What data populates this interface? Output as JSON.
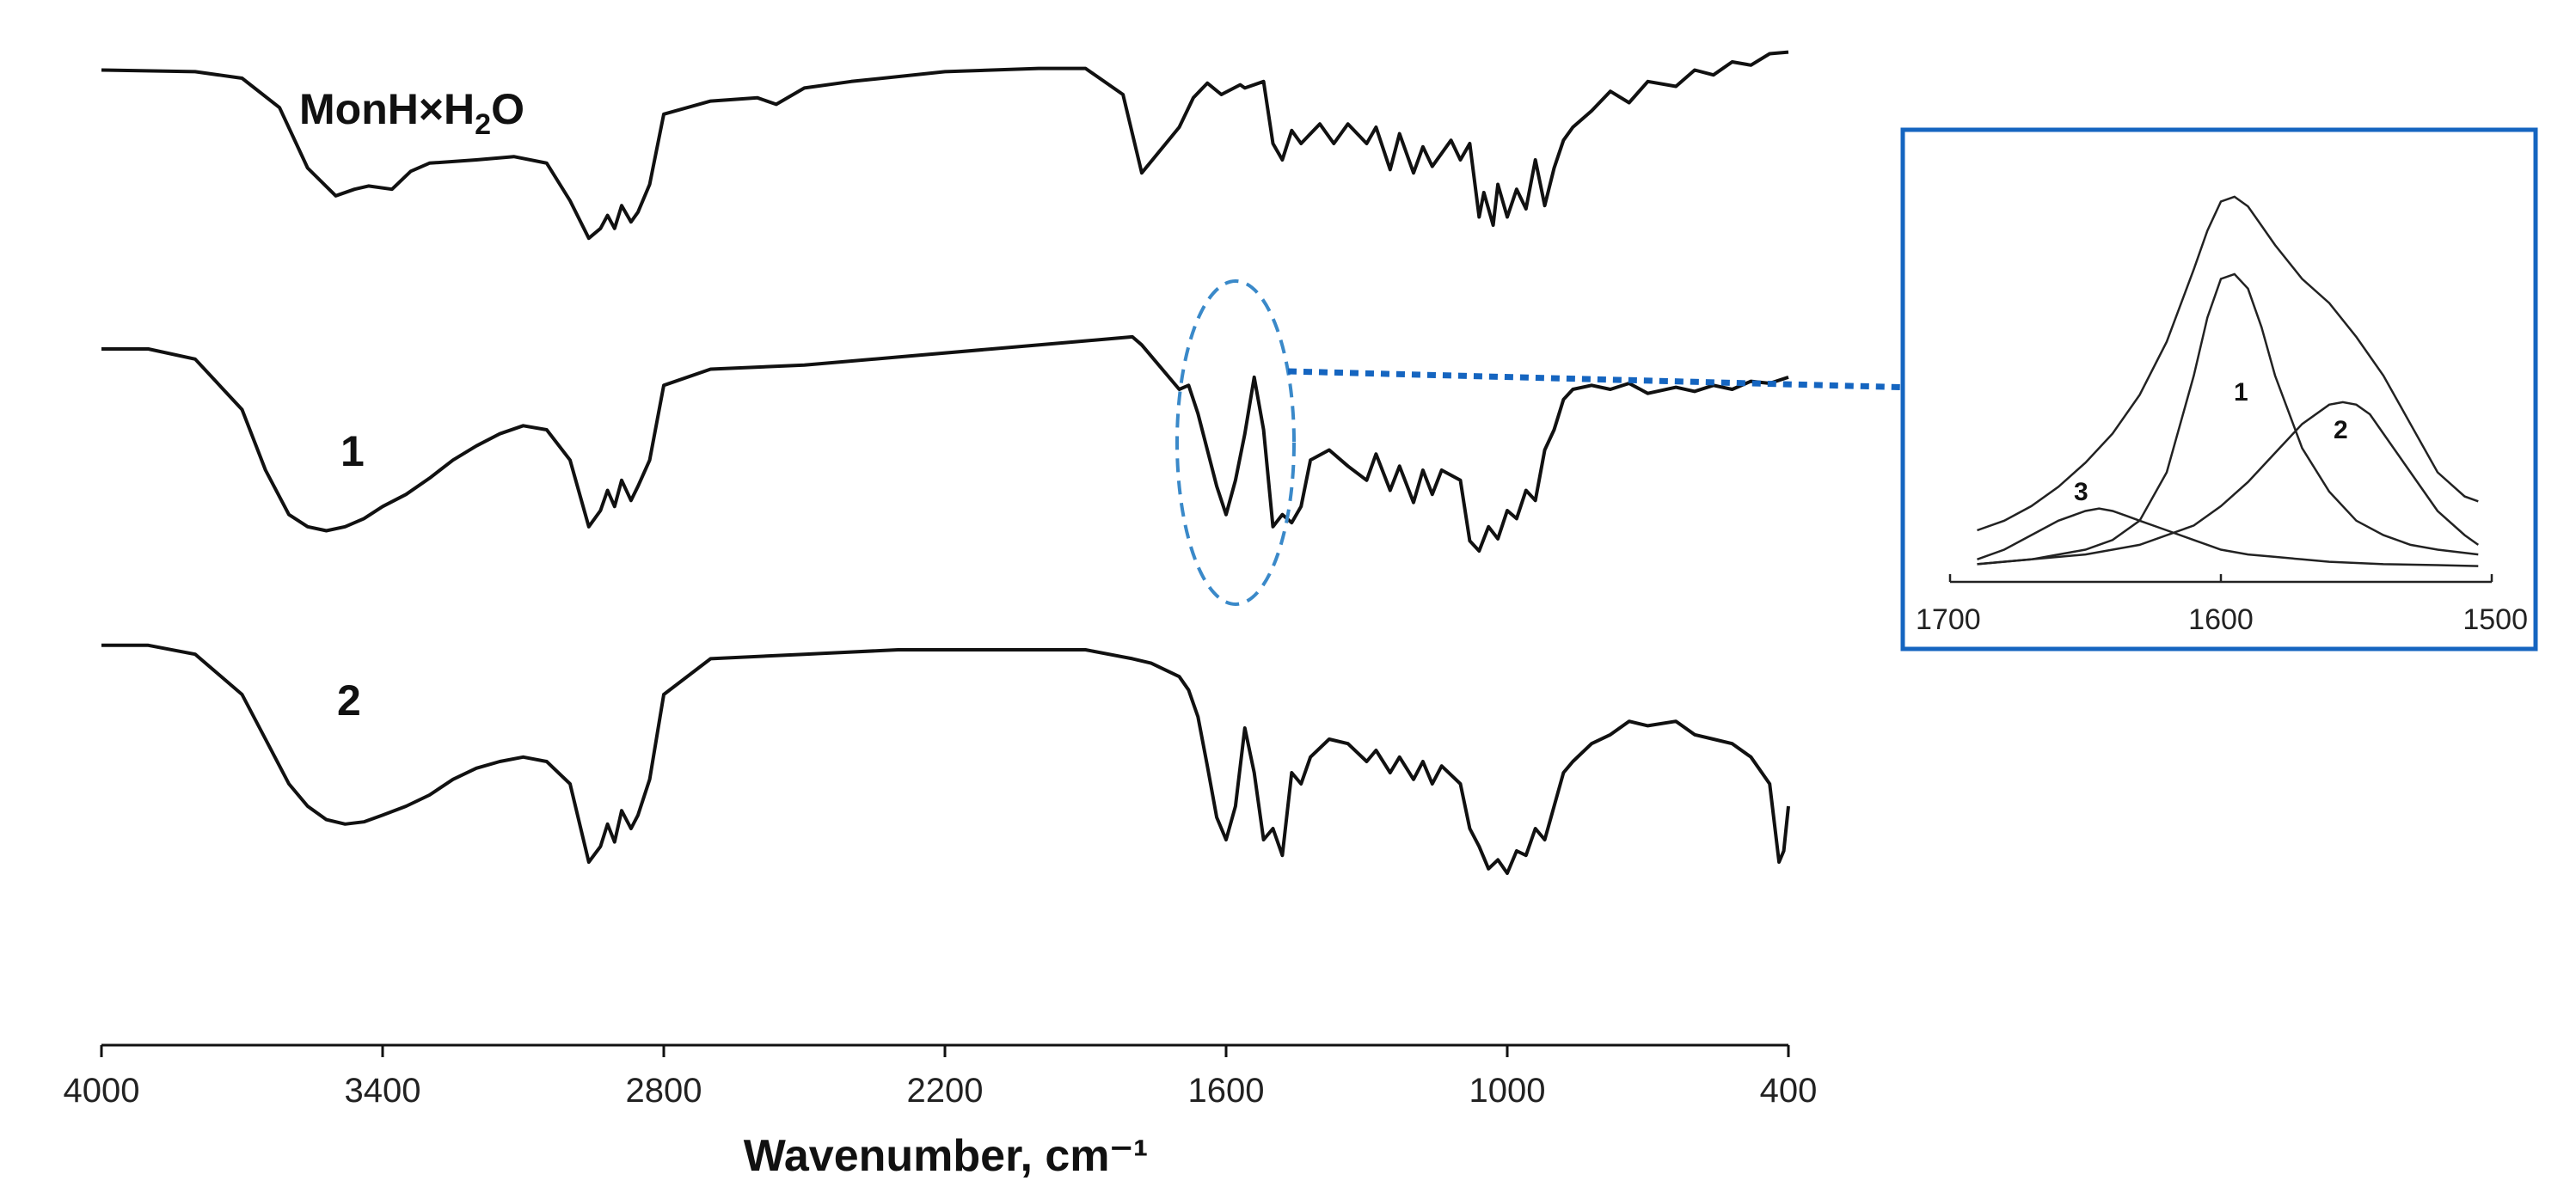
{
  "chart_data": [
    {
      "type": "line",
      "title": "",
      "xlabel": "Wavenumber, cm⁻¹",
      "ylabel": "",
      "xlim": [
        4000,
        400
      ],
      "x_reversed": true,
      "x_ticks": [
        "4000",
        "3400",
        "2800",
        "2200",
        "1600",
        "1000",
        "400"
      ],
      "grid": false,
      "series": [
        {
          "name": "MonH×H₂O",
          "offset_rank": 0,
          "x": [
            4000,
            3800,
            3700,
            3620,
            3560,
            3500,
            3460,
            3430,
            3380,
            3340,
            3300,
            3200,
            3120,
            3050,
            3000,
            2960,
            2935,
            2920,
            2905,
            2890,
            2870,
            2855,
            2830,
            2800,
            2700,
            2600,
            2560,
            2500,
            2400,
            2200,
            2000,
            1900,
            1820,
            1780,
            1700,
            1670,
            1640,
            1610,
            1570,
            1560,
            1520,
            1500,
            1480,
            1460,
            1440,
            1400,
            1370,
            1340,
            1300,
            1280,
            1250,
            1230,
            1200,
            1180,
            1160,
            1120,
            1100,
            1080,
            1060,
            1050,
            1030,
            1020,
            1000,
            980,
            960,
            940,
            920,
            900,
            880,
            860,
            820,
            780,
            740,
            700,
            640,
            600,
            560,
            520,
            480,
            440,
            400
          ],
          "values": [
            0.95,
            0.94,
            0.9,
            0.72,
            0.35,
            0.18,
            0.22,
            0.24,
            0.22,
            0.33,
            0.38,
            0.4,
            0.42,
            0.38,
            0.15,
            -0.08,
            -0.02,
            0.06,
            -0.02,
            0.12,
            0.02,
            0.08,
            0.25,
            0.68,
            0.76,
            0.78,
            0.74,
            0.84,
            0.88,
            0.94,
            0.96,
            0.96,
            0.8,
            0.32,
            0.6,
            0.78,
            0.87,
            0.8,
            0.86,
            0.84,
            0.88,
            0.5,
            0.4,
            0.58,
            0.5,
            0.62,
            0.5,
            0.62,
            0.5,
            0.6,
            0.34,
            0.56,
            0.32,
            0.48,
            0.36,
            0.52,
            0.4,
            0.5,
            0.05,
            0.2,
            0.0,
            0.25,
            0.05,
            0.22,
            0.1,
            0.4,
            0.12,
            0.35,
            0.52,
            0.6,
            0.7,
            0.82,
            0.75,
            0.88,
            0.85,
            0.95,
            0.92,
            1.0,
            0.98,
            1.05,
            1.06
          ]
        },
        {
          "name": "1",
          "offset_rank": 1,
          "x": [
            4000,
            3900,
            3800,
            3700,
            3650,
            3600,
            3560,
            3520,
            3480,
            3440,
            3400,
            3350,
            3300,
            3250,
            3200,
            3150,
            3100,
            3050,
            3000,
            2960,
            2935,
            2920,
            2905,
            2890,
            2870,
            2855,
            2830,
            2800,
            2700,
            2500,
            2300,
            2100,
            1900,
            1800,
            1780,
            1700,
            1680,
            1660,
            1640,
            1620,
            1600,
            1580,
            1560,
            1540,
            1520,
            1500,
            1480,
            1460,
            1440,
            1420,
            1380,
            1340,
            1300,
            1280,
            1250,
            1230,
            1200,
            1180,
            1160,
            1140,
            1100,
            1080,
            1060,
            1040,
            1020,
            1000,
            980,
            960,
            940,
            920,
            900,
            880,
            860,
            820,
            780,
            740,
            700,
            640,
            600,
            560,
            520,
            480,
            440,
            400
          ],
          "values": [
            0.6,
            0.6,
            0.55,
            0.3,
            0.0,
            -0.22,
            -0.28,
            -0.3,
            -0.28,
            -0.24,
            -0.18,
            -0.12,
            -0.04,
            0.05,
            0.12,
            0.18,
            0.22,
            0.2,
            0.05,
            -0.28,
            -0.2,
            -0.1,
            -0.18,
            -0.05,
            -0.15,
            -0.08,
            0.05,
            0.42,
            0.5,
            0.52,
            0.56,
            0.6,
            0.64,
            0.66,
            0.62,
            0.4,
            0.42,
            0.28,
            0.1,
            -0.08,
            -0.22,
            -0.05,
            0.18,
            0.46,
            0.2,
            -0.28,
            -0.22,
            -0.26,
            -0.18,
            0.05,
            0.1,
            0.02,
            -0.05,
            0.08,
            -0.1,
            0.02,
            -0.16,
            0.0,
            -0.12,
            0.0,
            -0.05,
            -0.35,
            -0.4,
            -0.28,
            -0.34,
            -0.2,
            -0.24,
            -0.1,
            -0.15,
            0.1,
            0.2,
            0.35,
            0.4,
            0.42,
            0.4,
            0.43,
            0.38,
            0.41,
            0.39,
            0.42,
            0.4,
            0.44,
            0.43,
            0.46
          ]
        },
        {
          "name": "2",
          "offset_rank": 2,
          "x": [
            4000,
            3900,
            3800,
            3700,
            3650,
            3600,
            3560,
            3520,
            3480,
            3440,
            3400,
            3350,
            3300,
            3250,
            3200,
            3150,
            3100,
            3050,
            3000,
            2960,
            2935,
            2920,
            2905,
            2890,
            2870,
            2855,
            2830,
            2800,
            2700,
            2500,
            2300,
            2100,
            1900,
            1800,
            1760,
            1700,
            1680,
            1660,
            1640,
            1620,
            1600,
            1580,
            1560,
            1540,
            1520,
            1500,
            1480,
            1460,
            1440,
            1420,
            1380,
            1340,
            1300,
            1280,
            1250,
            1230,
            1200,
            1180,
            1160,
            1140,
            1100,
            1080,
            1060,
            1040,
            1020,
            1000,
            980,
            960,
            940,
            920,
            900,
            880,
            860,
            820,
            780,
            740,
            700,
            640,
            600,
            560,
            520,
            480,
            440,
            420,
            410,
            400
          ],
          "values": [
            0.62,
            0.62,
            0.58,
            0.4,
            0.2,
            0.0,
            -0.1,
            -0.16,
            -0.18,
            -0.17,
            -0.14,
            -0.1,
            -0.05,
            0.02,
            0.07,
            0.1,
            0.12,
            0.1,
            0.0,
            -0.35,
            -0.28,
            -0.18,
            -0.26,
            -0.12,
            -0.2,
            -0.14,
            0.02,
            0.4,
            0.56,
            0.58,
            0.6,
            0.6,
            0.6,
            0.56,
            0.54,
            0.48,
            0.42,
            0.3,
            0.08,
            -0.15,
            -0.25,
            -0.1,
            0.25,
            0.05,
            -0.25,
            -0.2,
            -0.32,
            0.05,
            0.0,
            0.12,
            0.2,
            0.18,
            0.1,
            0.15,
            0.05,
            0.12,
            0.02,
            0.1,
            0.0,
            0.08,
            0.0,
            -0.2,
            -0.28,
            -0.38,
            -0.34,
            -0.4,
            -0.3,
            -0.32,
            -0.2,
            -0.25,
            -0.1,
            0.05,
            0.1,
            0.18,
            0.22,
            0.28,
            0.26,
            0.28,
            0.22,
            0.2,
            0.18,
            0.12,
            0.0,
            -0.35,
            -0.3,
            -0.1
          ]
        }
      ],
      "highlight": {
        "shape": "ellipse",
        "x_range": [
          1700,
          1500
        ],
        "style": "dashed",
        "color": "#3a89c9"
      },
      "arrow_color": "#1565c0"
    },
    {
      "type": "line",
      "title": "",
      "xlim": [
        1700,
        1500
      ],
      "x_reversed": true,
      "x_ticks": [
        "1700",
        "1600",
        "1500"
      ],
      "frame_color": "#1565c0",
      "series": [
        {
          "name": "",
          "x": [
            1690,
            1680,
            1670,
            1660,
            1650,
            1640,
            1630,
            1620,
            1610,
            1605,
            1600,
            1595,
            1590,
            1585,
            1580,
            1570,
            1560,
            1550,
            1540,
            1530,
            1520,
            1510,
            1505
          ],
          "values": [
            0.08,
            0.1,
            0.13,
            0.17,
            0.22,
            0.28,
            0.36,
            0.47,
            0.62,
            0.7,
            0.76,
            0.77,
            0.75,
            0.71,
            0.67,
            0.6,
            0.55,
            0.48,
            0.4,
            0.3,
            0.2,
            0.15,
            0.14
          ]
        },
        {
          "name": "1",
          "x": [
            1690,
            1670,
            1650,
            1640,
            1630,
            1620,
            1610,
            1605,
            1600,
            1595,
            1590,
            1585,
            1580,
            1570,
            1560,
            1550,
            1540,
            1530,
            1520,
            1505
          ],
          "values": [
            0.01,
            0.02,
            0.04,
            0.06,
            0.1,
            0.2,
            0.4,
            0.52,
            0.6,
            0.61,
            0.58,
            0.5,
            0.4,
            0.25,
            0.16,
            0.1,
            0.07,
            0.05,
            0.04,
            0.03
          ]
        },
        {
          "name": "2",
          "x": [
            1690,
            1670,
            1650,
            1630,
            1610,
            1600,
            1590,
            1580,
            1570,
            1560,
            1555,
            1550,
            1545,
            1540,
            1530,
            1520,
            1510,
            1505
          ],
          "values": [
            0.01,
            0.02,
            0.03,
            0.05,
            0.09,
            0.13,
            0.18,
            0.24,
            0.3,
            0.34,
            0.345,
            0.34,
            0.32,
            0.28,
            0.2,
            0.12,
            0.07,
            0.05
          ]
        },
        {
          "name": "3",
          "x": [
            1690,
            1680,
            1670,
            1660,
            1650,
            1645,
            1640,
            1635,
            1630,
            1620,
            1610,
            1600,
            1590,
            1580,
            1570,
            1560,
            1540,
            1520,
            1505
          ],
          "values": [
            0.02,
            0.04,
            0.07,
            0.1,
            0.12,
            0.125,
            0.12,
            0.11,
            0.1,
            0.08,
            0.06,
            0.04,
            0.03,
            0.025,
            0.02,
            0.015,
            0.01,
            0.008,
            0.006
          ]
        }
      ]
    }
  ]
}
